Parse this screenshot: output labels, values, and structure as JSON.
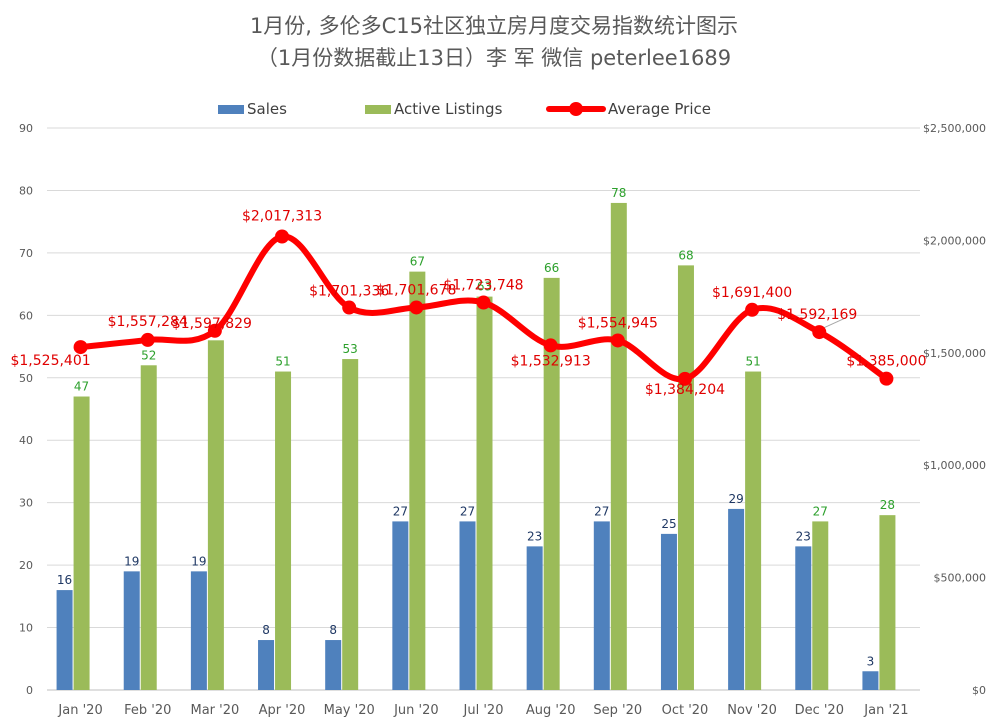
{
  "title": "1月份, 多伦多C15社区独立房月度交易指数统计图示",
  "subtitle": "（1月份数据截止13日）李 军  微信  peterlee1689",
  "colors": {
    "sales": "#4f81bd",
    "active": "#9bbb59",
    "price": "#ff0000",
    "active_label": "#2ca02c",
    "sales_label": "#1f3864",
    "grid": "#d9d9d9"
  },
  "legend": {
    "sales": "Sales",
    "active": "Active Listings",
    "price": "Average Price"
  },
  "chart_data": {
    "type": "bar",
    "categories": [
      "Jan '20",
      "Feb '20",
      "Mar '20",
      "Apr '20",
      "May '20",
      "Jun '20",
      "Jul '20",
      "Aug '20",
      "Sep '20",
      "Oct '20",
      "Nov '20",
      "Dec '20",
      "Jan '21"
    ],
    "series": [
      {
        "name": "Sales",
        "type": "bar",
        "axis": "left",
        "values": [
          16,
          19,
          19,
          8,
          8,
          27,
          27,
          23,
          27,
          25,
          29,
          23,
          3
        ]
      },
      {
        "name": "Active Listings",
        "type": "bar",
        "axis": "left",
        "values": [
          47,
          52,
          56,
          51,
          53,
          67,
          63,
          66,
          78,
          68,
          51,
          27,
          28
        ]
      },
      {
        "name": "Average Price",
        "type": "line",
        "axis": "right",
        "values": [
          1525401,
          1557284,
          1597829,
          2017313,
          1701336,
          1701678,
          1723748,
          1532913,
          1554945,
          1384204,
          1691400,
          1592169,
          1385000
        ]
      }
    ],
    "data_labels": {
      "Sales": [
        "16",
        "19",
        "19",
        "8",
        "8",
        "27",
        "27",
        "23",
        "27",
        "25",
        "29",
        "23",
        "3"
      ],
      "Active Listings": [
        "47",
        "52",
        "",
        "51",
        "53",
        "67",
        "63",
        "66",
        "78",
        "68",
        "51",
        "27",
        "28"
      ],
      "Average Price": [
        "$1,525,401",
        "$1,557,284",
        "$1,597,829",
        "$2,017,313",
        "$1,701,336",
        "$1,701,678",
        "$1,723,748",
        "$1,532,913",
        "$1,554,945",
        "$1,384,204",
        "$1,691,400",
        "$1,592,169",
        "$1,385,000"
      ]
    },
    "y_left": {
      "ylim": [
        0,
        90
      ],
      "ticks": [
        "0",
        "10",
        "20",
        "30",
        "40",
        "50",
        "60",
        "70",
        "80",
        "90"
      ]
    },
    "y_right": {
      "ylim": [
        0,
        2500000
      ],
      "ticks": [
        "$0",
        "$500,000",
        "$1,000,000",
        "$1,500,000",
        "$2,000,000",
        "$2,500,000"
      ]
    },
    "grid": true,
    "legend_position": "top"
  }
}
